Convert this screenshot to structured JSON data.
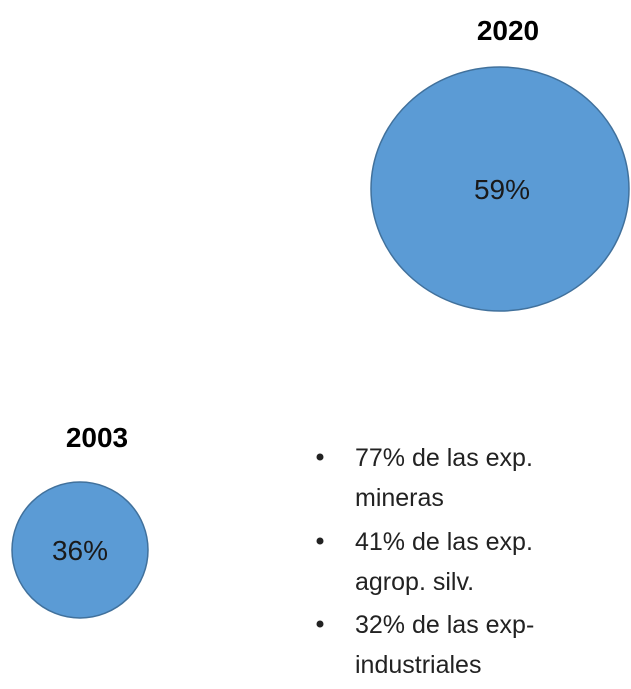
{
  "circles": [
    {
      "title": "2020",
      "label": "59%"
    },
    {
      "title": "2003",
      "label": "36%"
    }
  ],
  "bullets": [
    {
      "lines": [
        "77% de las exp.",
        "mineras"
      ]
    },
    {
      "lines": [
        "41% de las exp.",
        "agrop. silv."
      ]
    },
    {
      "lines": [
        "32% de las exp-",
        "industriales"
      ]
    }
  ]
}
